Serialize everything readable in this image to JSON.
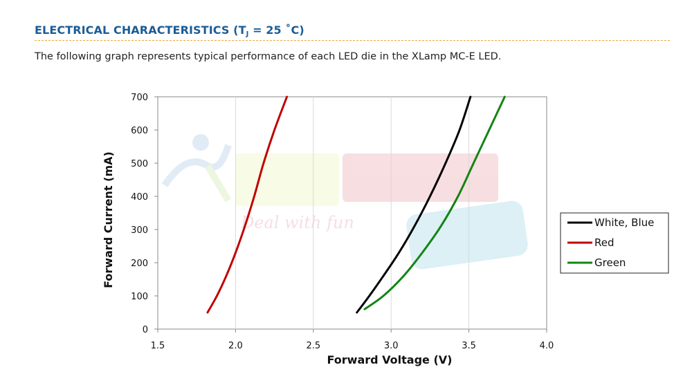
{
  "header": {
    "title_prefix": "ELECTRICAL CHARACTERISTICS (T",
    "title_sub": "J",
    "title_suffix": " = 25 ˚C)",
    "intro": "The following graph represents typical performance of each LED die in the XLamp MC-E LED."
  },
  "colors": {
    "title": "#1a5c96",
    "rule": "#e7a83a",
    "grid": "#d9d9d9"
  },
  "chart_data": {
    "type": "line",
    "xlabel": "Forward Voltage (V)",
    "ylabel": "Forward Current (mA)",
    "xlim": [
      1.5,
      4.0
    ],
    "ylim": [
      0,
      700
    ],
    "xticks": [
      1.5,
      2.0,
      2.5,
      3.0,
      3.5,
      4.0
    ],
    "xtick_labels": [
      "1.5",
      "2.0",
      "2.5",
      "3.0",
      "3.5",
      "4.0"
    ],
    "yticks": [
      0,
      100,
      200,
      300,
      400,
      500,
      600,
      700
    ],
    "ytick_labels": [
      "0",
      "100",
      "200",
      "300",
      "400",
      "500",
      "600",
      "700"
    ],
    "grid": "vertical",
    "legend_position": "right",
    "series": [
      {
        "name": "White, Blue",
        "color": "#000000",
        "x": [
          2.78,
          2.86,
          2.95,
          3.05,
          3.15,
          3.25,
          3.35,
          3.44,
          3.51
        ],
        "y": [
          50,
          100,
          160,
          230,
          310,
          400,
          500,
          600,
          700
        ]
      },
      {
        "name": "Red",
        "color": "#c00000",
        "x": [
          1.82,
          1.88,
          1.94,
          2.0,
          2.06,
          2.12,
          2.18,
          2.25,
          2.33
        ],
        "y": [
          50,
          100,
          160,
          230,
          310,
          400,
          500,
          600,
          700
        ]
      },
      {
        "name": "Green",
        "color": "#138413",
        "x": [
          2.83,
          2.95,
          3.08,
          3.2,
          3.32,
          3.43,
          3.53,
          3.63,
          3.73
        ],
        "y": [
          60,
          100,
          160,
          230,
          310,
          400,
          500,
          600,
          700
        ]
      }
    ]
  }
}
